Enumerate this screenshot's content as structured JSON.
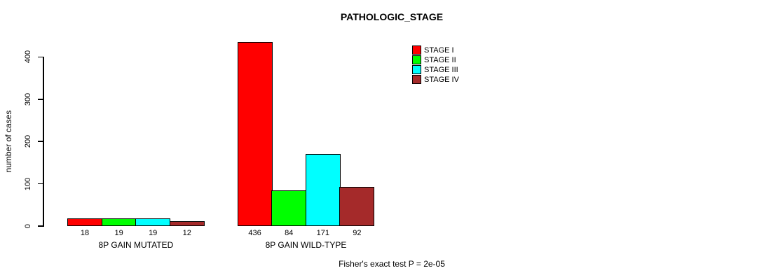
{
  "title": "PATHOLOGIC_STAGE",
  "footer": "Fisher's exact test P = 2e-05",
  "chart_data": {
    "type": "bar",
    "title": "PATHOLOGIC_STAGE",
    "ylabel": "number of cases",
    "xlabel": "",
    "categories": [
      "8P GAIN MUTATED",
      "8P GAIN WILD-TYPE"
    ],
    "series": [
      {
        "name": "STAGE I",
        "color": "#FF0000",
        "values": [
          18,
          436
        ]
      },
      {
        "name": "STAGE II",
        "color": "#00FF00",
        "values": [
          19,
          84
        ]
      },
      {
        "name": "STAGE III",
        "color": "#00FFFF",
        "values": [
          19,
          171
        ]
      },
      {
        "name": "STAGE IV",
        "color": "#A52A2A",
        "values": [
          12,
          92
        ]
      }
    ],
    "yticks": [
      0,
      100,
      200,
      300,
      400
    ],
    "ylim": [
      0,
      436
    ],
    "grid": false,
    "bar_value_labels": true,
    "legend_position": "top-right",
    "annotation": "Fisher's exact test P = 2e-05"
  }
}
